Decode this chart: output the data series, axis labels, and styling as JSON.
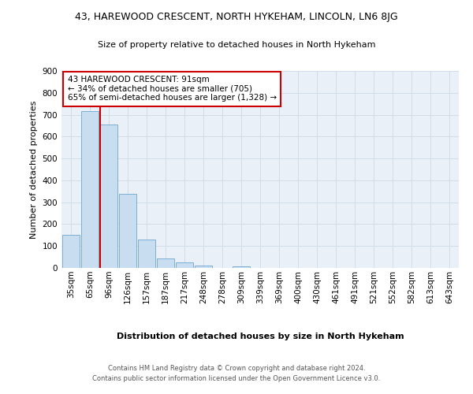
{
  "title": "43, HAREWOOD CRESCENT, NORTH HYKEHAM, LINCOLN, LN6 8JG",
  "subtitle": "Size of property relative to detached houses in North Hykeham",
  "xlabel": "Distribution of detached houses by size in North Hykeham",
  "ylabel": "Number of detached properties",
  "footer_line1": "Contains HM Land Registry data © Crown copyright and database right 2024.",
  "footer_line2": "Contains public sector information licensed under the Open Government Licence v3.0.",
  "bar_labels": [
    "35sqm",
    "65sqm",
    "96sqm",
    "126sqm",
    "157sqm",
    "187sqm",
    "217sqm",
    "248sqm",
    "278sqm",
    "309sqm",
    "339sqm",
    "369sqm",
    "400sqm",
    "430sqm",
    "461sqm",
    "491sqm",
    "521sqm",
    "552sqm",
    "582sqm",
    "613sqm",
    "643sqm"
  ],
  "bar_values": [
    150,
    715,
    655,
    340,
    128,
    42,
    27,
    10,
    0,
    8,
    0,
    0,
    0,
    0,
    0,
    0,
    0,
    0,
    0,
    0,
    0
  ],
  "bar_color": "#c9ddf0",
  "bar_edge_color": "#7bafd4",
  "grid_color": "#d0dce8",
  "background_color": "#eaf0f8",
  "red_line_color": "#cc0000",
  "red_line_x": 1.55,
  "annotation_text": "43 HAREWOOD CRESCENT: 91sqm\n← 34% of detached houses are smaller (705)\n65% of semi-detached houses are larger (1,328) →",
  "annotation_box_color": "#ffffff",
  "annotation_box_edge": "#cc0000",
  "ylim": [
    0,
    900
  ],
  "yticks": [
    0,
    100,
    200,
    300,
    400,
    500,
    600,
    700,
    800,
    900
  ],
  "title_fontsize": 9,
  "subtitle_fontsize": 8,
  "ylabel_fontsize": 8,
  "xlabel_fontsize": 8,
  "tick_fontsize": 7.5,
  "footer_fontsize": 6,
  "annotation_fontsize": 7.5
}
